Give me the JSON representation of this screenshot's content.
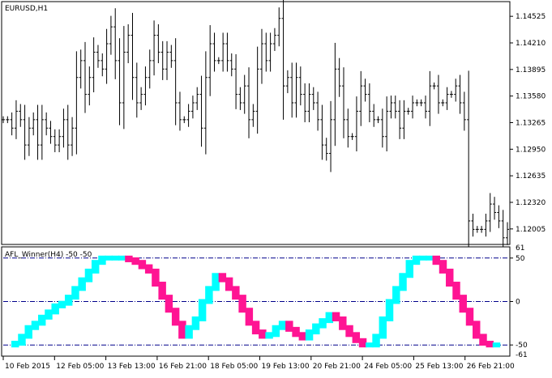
{
  "main_chart": {
    "title": "EURUSD,H1",
    "price_labels": [
      "1.14525",
      "1.14210",
      "1.13895",
      "1.13580",
      "1.13265",
      "1.12950",
      "1.12635",
      "1.12320",
      "1.12005"
    ],
    "price_min": 1.1185,
    "price_max": 1.1468,
    "bar_color": "#000000"
  },
  "indicator": {
    "title": "AFL_Winner(H4) -50 -50",
    "scale_labels": {
      "top": "61",
      "upper": "50",
      "middle": "0",
      "lower": "-50",
      "bottom": "-61"
    },
    "range": [
      -61,
      61
    ],
    "levels": [
      50,
      0,
      -50
    ],
    "level_color": "#00008b",
    "up_color": "#00ffff",
    "down_color": "#ff1493"
  },
  "time_labels": [
    "10 Feb 2015",
    "12 Feb 05:00",
    "13 Feb 13:00",
    "16 Feb 21:00",
    "18 Feb 05:00",
    "19 Feb 13:00",
    "20 Feb 21:00",
    "24 Feb 05:00",
    "25 Feb 13:00",
    "26 Feb 21:00"
  ],
  "chart_data": [
    {
      "type": "line",
      "series": [
        {
          "name": "EURUSD,H1",
          "values": [
            1.133,
            1.133,
            1.132,
            1.134,
            1.133,
            1.13,
            1.132,
            1.133,
            1.13,
            1.133,
            1.132,
            1.131,
            1.13,
            1.131,
            1.133,
            1.13,
            1.132,
            1.138,
            1.14,
            1.136,
            1.138,
            1.141,
            1.14,
            1.139,
            1.142,
            1.144,
            1.14,
            1.135,
            1.141,
            1.143,
            1.138,
            1.135,
            1.136,
            1.138,
            1.14,
            1.143,
            1.141,
            1.139,
            1.141,
            1.14,
            1.135,
            1.133,
            1.133,
            1.134,
            1.135,
            1.136,
            1.132,
            1.138,
            1.142,
            1.14,
            1.14,
            1.142,
            1.14,
            1.139,
            1.136,
            1.135,
            1.137,
            1.133,
            1.134,
            1.139,
            1.142,
            1.14,
            1.142,
            1.143,
            1.145,
            1.137,
            1.138,
            1.135,
            1.138,
            1.136,
            1.134,
            1.136,
            1.135,
            1.133,
            1.13,
            1.129,
            1.133,
            1.139,
            1.137,
            1.133,
            1.131,
            1.131,
            1.134,
            1.137,
            1.136,
            1.134,
            1.133,
            1.133,
            1.131,
            1.134,
            1.135,
            1.134,
            1.132,
            1.134,
            1.134,
            1.135,
            1.135,
            1.135,
            1.134,
            1.137,
            1.137,
            1.135,
            1.135,
            1.136,
            1.136,
            1.137,
            1.135,
            1.133,
            1.121,
            1.12,
            1.12,
            1.12,
            1.121,
            1.123,
            1.122,
            1.121,
            1.119,
            1.12
          ]
        }
      ],
      "ylim": [
        1.1185,
        1.1468
      ]
    },
    {
      "type": "bar",
      "series": [
        {
          "name": "AFL_Winner(H4)",
          "values": [
            -50,
            -48,
            -40,
            -30,
            -25,
            -18,
            -12,
            -5,
            -2,
            5,
            15,
            25,
            35,
            45,
            50,
            50,
            50,
            50,
            48,
            45,
            40,
            35,
            20,
            5,
            -10,
            -25,
            -40,
            -30,
            -20,
            0,
            15,
            30,
            25,
            15,
            5,
            -10,
            -25,
            -35,
            -40,
            -38,
            -30,
            -25,
            -32,
            -38,
            -42,
            -35,
            -28,
            -22,
            -15,
            -20,
            -30,
            -38,
            -45,
            -50,
            -50,
            -40,
            -20,
            0,
            15,
            30,
            45,
            50,
            50,
            50,
            45,
            35,
            20,
            5,
            -10,
            -25,
            -40,
            -48,
            -50,
            -50
          ]
        }
      ],
      "ylim": [
        -61,
        61
      ]
    }
  ]
}
